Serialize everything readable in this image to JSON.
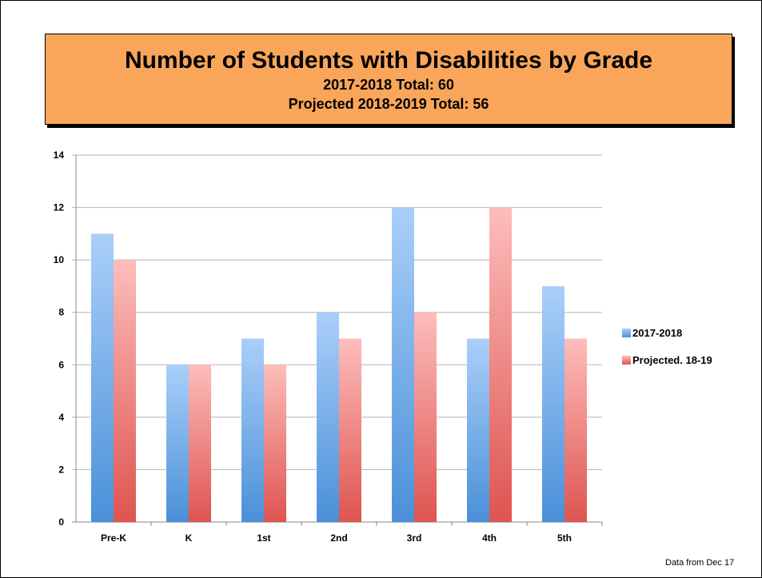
{
  "title": "Number of Students with Disabilities by Grade",
  "subtitle_1": "2017-2018 Total: 60",
  "subtitle_2": "Projected 2018-2019 Total: 56",
  "footnote": "Data from Dec 17",
  "colors": {
    "title_bg": "#f9a65a",
    "series_1_light": "#aacff9",
    "series_1_dark": "#4a90d8",
    "series_2_light": "#fdbdbb",
    "series_2_dark": "#de5450",
    "grid": "#b5b5b5"
  },
  "chart_data": {
    "type": "bar",
    "categories": [
      "Pre-K",
      "K",
      "1st",
      "2nd",
      "3rd",
      "4th",
      "5th"
    ],
    "series": [
      {
        "name": "2017-2018",
        "values": [
          11,
          6,
          7,
          8,
          12,
          7,
          9
        ]
      },
      {
        "name": "Projected. 18-19",
        "values": [
          10,
          6,
          6,
          7,
          8,
          12,
          7
        ]
      }
    ],
    "ylim": [
      0,
      14
    ],
    "yticks": [
      0,
      2,
      4,
      6,
      8,
      10,
      12,
      14
    ],
    "grid": true,
    "legend_position": "right"
  }
}
